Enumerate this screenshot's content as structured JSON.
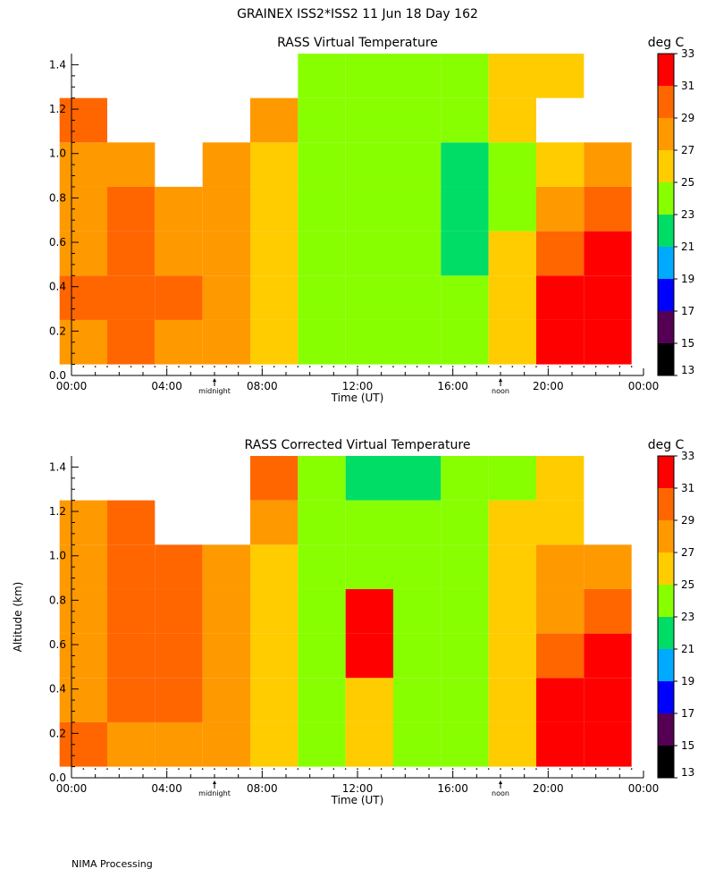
{
  "page_title": "GRAINEX ISS2*ISS2  11 Jun 18 Day 162",
  "footer": "NIMA Processing",
  "colors": {
    "bins": [
      "#000000",
      "#550055",
      "#0000ff",
      "#00aaff",
      "#00dd66",
      "#88ff00",
      "#ffcc00",
      "#ff9900",
      "#ff6600",
      "#ff0000"
    ]
  },
  "colorbar": {
    "unit": "deg C",
    "labels": [
      "13",
      "15",
      "17",
      "19",
      "21",
      "23",
      "25",
      "27",
      "29",
      "31",
      "33"
    ]
  },
  "chart_data": [
    {
      "type": "heatmap",
      "title": "RASS Virtual Temperature",
      "xlabel": "Time (UT)",
      "ylabel": "",
      "x_tick_labels": [
        "00:00",
        "04:00",
        "08:00",
        "12:00",
        "16:00",
        "20:00",
        "00:00"
      ],
      "y_tick_labels": [
        "0.0",
        "0.2",
        "0.4",
        "0.6",
        "0.8",
        "1.0",
        "1.2",
        "1.4"
      ],
      "xlim": [
        0,
        24
      ],
      "ylim": [
        0,
        1.45
      ],
      "markers": [
        {
          "x": 6,
          "label": "midnight"
        },
        {
          "x": 18,
          "label": "noon"
        }
      ],
      "x_hours": [
        0.5,
        2.5,
        4.5,
        6.5,
        8.5,
        10.5,
        12.5,
        14.5,
        16.5,
        18.5,
        20.5,
        22.5
      ],
      "altitudes_km": [
        0.15,
        0.35,
        0.55,
        0.75,
        0.95,
        1.15,
        1.35
      ],
      "temperature_c": [
        [
          28,
          29,
          27,
          27,
          26,
          24,
          23,
          24,
          24,
          25,
          33,
          33
        ],
        [
          29,
          29,
          29,
          28,
          26,
          24,
          24,
          24,
          24,
          26,
          32,
          33
        ],
        [
          28,
          29,
          28,
          28,
          25,
          24,
          24,
          23,
          22,
          25,
          29,
          31
        ],
        [
          28,
          29,
          28,
          27,
          25,
          24,
          23,
          23,
          22,
          24,
          28,
          29
        ],
        [
          27,
          27,
          null,
          28,
          26,
          24,
          23,
          23,
          22,
          24,
          26,
          28
        ],
        [
          29,
          null,
          null,
          null,
          27,
          24,
          23,
          23,
          23,
          25,
          null,
          null
        ],
        [
          null,
          null,
          null,
          null,
          null,
          24,
          23,
          23,
          23,
          25,
          25,
          null
        ]
      ]
    },
    {
      "type": "heatmap",
      "title": "RASS Corrected Virtual Temperature",
      "xlabel": "Time (UT)",
      "ylabel": "Altitude (km)",
      "x_tick_labels": [
        "00:00",
        "04:00",
        "08:00",
        "12:00",
        "16:00",
        "20:00",
        "00:00"
      ],
      "y_tick_labels": [
        "0.0",
        "0.2",
        "0.4",
        "0.6",
        "0.8",
        "1.0",
        "1.2",
        "1.4"
      ],
      "xlim": [
        0,
        24
      ],
      "ylim": [
        0,
        1.45
      ],
      "markers": [
        {
          "x": 6,
          "label": "midnight"
        },
        {
          "x": 18,
          "label": "noon"
        }
      ],
      "x_hours": [
        0.5,
        2.5,
        4.5,
        6.5,
        8.5,
        10.5,
        12.5,
        14.5,
        16.5,
        18.5,
        20.5,
        22.5
      ],
      "altitudes_km": [
        0.15,
        0.35,
        0.55,
        0.75,
        0.95,
        1.15,
        1.35
      ],
      "temperature_c": [
        [
          29,
          27,
          27,
          27,
          26,
          24,
          25,
          24,
          24,
          26,
          32,
          33
        ],
        [
          28,
          29,
          29,
          28,
          26,
          24,
          25,
          24,
          24,
          26,
          31,
          33
        ],
        [
          28,
          29,
          29,
          28,
          26,
          24,
          31,
          23,
          24,
          26,
          29,
          31
        ],
        [
          28,
          29,
          29,
          28,
          26,
          24,
          31,
          23,
          23,
          25,
          28,
          29
        ],
        [
          28,
          29,
          29,
          28,
          26,
          24,
          24,
          23,
          23,
          25,
          27,
          28
        ],
        [
          28,
          29,
          null,
          null,
          27,
          24,
          23,
          23,
          23,
          25,
          26,
          null
        ],
        [
          null,
          null,
          null,
          null,
          29,
          24,
          22,
          22,
          23,
          24,
          25,
          null
        ]
      ]
    }
  ]
}
